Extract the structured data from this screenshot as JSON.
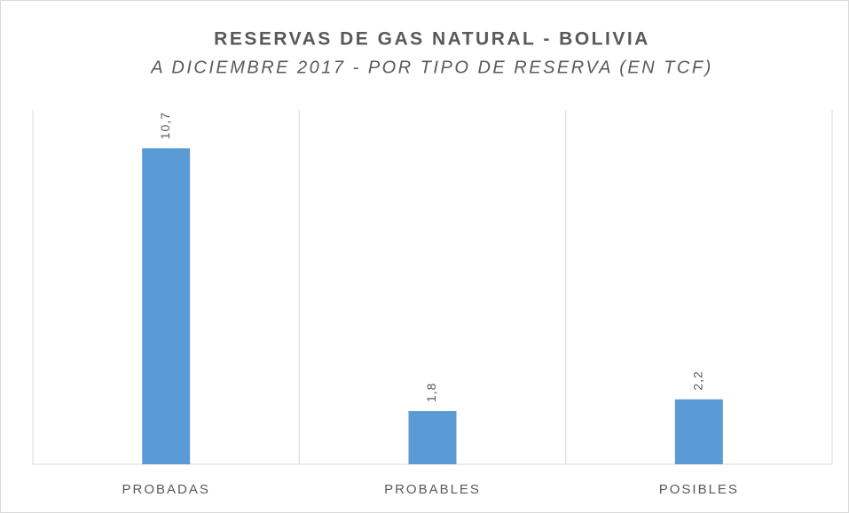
{
  "chart_data": {
    "type": "bar",
    "title": "RESERVAS DE GAS NATURAL - BOLIVIA",
    "subtitle": "A DICIEMBRE 2017  - POR TIPO DE RESERVA (EN TCF)",
    "categories": [
      "PROBADAS",
      "PROBABLES",
      "POSIBLES"
    ],
    "values": [
      10.7,
      1.8,
      2.2
    ],
    "value_labels": [
      "10,7",
      "1,8",
      "2,2"
    ],
    "color": "#5b9bd5",
    "ylim": [
      0,
      12
    ]
  }
}
